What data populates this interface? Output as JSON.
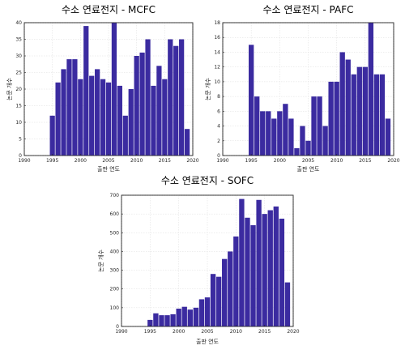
{
  "bar_color": "#3b2ba0",
  "chart_data": [
    {
      "type": "bar",
      "title": "수소 연료전지 - MCFC",
      "xlabel": "출판 연도",
      "ylabel": "논문 개수",
      "xlim": [
        1990,
        2020
      ],
      "ylim": [
        0,
        40
      ],
      "xticks": [
        1990,
        1995,
        2000,
        2005,
        2010,
        2015,
        2020
      ],
      "yticks": [
        0,
        5,
        10,
        15,
        20,
        25,
        30,
        35,
        40
      ],
      "grid": true,
      "x": [
        1995,
        1996,
        1997,
        1998,
        1999,
        2000,
        2001,
        2002,
        2003,
        2004,
        2005,
        2006,
        2007,
        2008,
        2009,
        2010,
        2011,
        2012,
        2013,
        2014,
        2015,
        2016,
        2017,
        2018,
        2019
      ],
      "values": [
        12,
        22,
        26,
        29,
        29,
        23,
        39,
        24,
        26,
        23,
        22,
        40,
        21,
        12,
        20,
        30,
        31,
        35,
        21,
        27,
        23,
        35,
        33,
        35,
        8
      ]
    },
    {
      "type": "bar",
      "title": "수소 연료전지 - PAFC",
      "xlabel": "출판 연도",
      "ylabel": "논문 개수",
      "xlim": [
        1990,
        2020
      ],
      "ylim": [
        0,
        18
      ],
      "xticks": [
        1990,
        1995,
        2000,
        2005,
        2010,
        2015,
        2020
      ],
      "yticks": [
        0,
        2,
        4,
        6,
        8,
        10,
        12,
        14,
        16,
        18
      ],
      "grid": true,
      "x": [
        1995,
        1996,
        1997,
        1998,
        1999,
        2000,
        2001,
        2002,
        2003,
        2004,
        2005,
        2006,
        2007,
        2008,
        2009,
        2010,
        2011,
        2012,
        2013,
        2014,
        2015,
        2016,
        2017,
        2018,
        2019
      ],
      "values": [
        15,
        8,
        6,
        6,
        5,
        6,
        7,
        5,
        1,
        4,
        2,
        8,
        8,
        4,
        10,
        10,
        14,
        13,
        11,
        12,
        12,
        18,
        11,
        11,
        5
      ]
    },
    {
      "type": "bar",
      "title": "수소 연료전지 - SOFC",
      "xlabel": "출판 연도",
      "ylabel": "논문 개수",
      "xlim": [
        1990,
        2020
      ],
      "ylim": [
        0,
        700
      ],
      "xticks": [
        1990,
        1995,
        2000,
        2005,
        2010,
        2015,
        2020
      ],
      "yticks": [
        0,
        100,
        200,
        300,
        400,
        500,
        600,
        700
      ],
      "grid": true,
      "x": [
        1995,
        1996,
        1997,
        1998,
        1999,
        2000,
        2001,
        2002,
        2003,
        2004,
        2005,
        2006,
        2007,
        2008,
        2009,
        2010,
        2011,
        2012,
        2013,
        2014,
        2015,
        2016,
        2017,
        2018,
        2019
      ],
      "values": [
        35,
        70,
        60,
        60,
        65,
        95,
        105,
        90,
        100,
        145,
        155,
        280,
        265,
        360,
        400,
        480,
        680,
        580,
        540,
        675,
        600,
        620,
        640,
        575,
        235
      ]
    }
  ]
}
